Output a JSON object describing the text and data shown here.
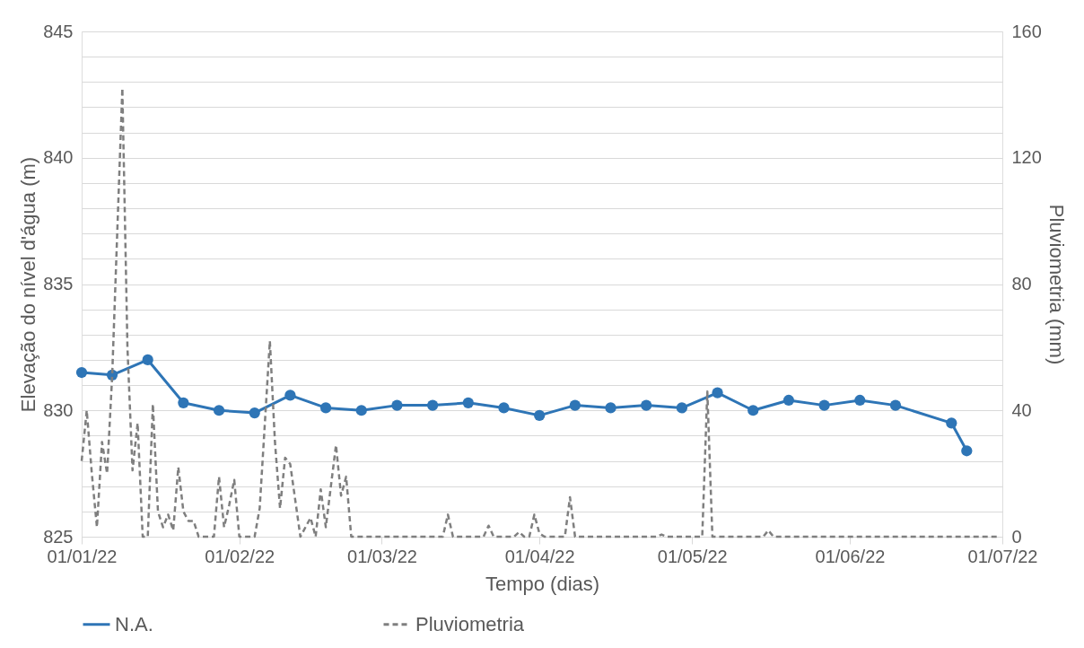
{
  "chart_data": {
    "type": "line",
    "xlabel": "Tempo (dias)",
    "ylabel": "Elevação do nível d'água (m)",
    "y2label": "Pluviometria (mm)",
    "xlim": [
      "2022-01-01",
      "2022-07-01"
    ],
    "xticks": [
      {
        "value": "2022-01-01",
        "label": "01/01/22"
      },
      {
        "value": "2022-02-01",
        "label": "01/02/22"
      },
      {
        "value": "2022-03-01",
        "label": "01/03/22"
      },
      {
        "value": "2022-04-01",
        "label": "01/04/22"
      },
      {
        "value": "2022-05-01",
        "label": "01/05/22"
      },
      {
        "value": "2022-06-01",
        "label": "01/06/22"
      },
      {
        "value": "2022-07-01",
        "label": "01/07/22"
      }
    ],
    "ylim": [
      825,
      845
    ],
    "yticks": [
      825,
      {
        "value": 826,
        "label": null
      },
      {
        "value": 827,
        "label": null
      },
      {
        "value": 828,
        "label": null
      },
      {
        "value": 829,
        "label": null
      },
      830,
      {
        "value": 831,
        "label": null
      },
      {
        "value": 832,
        "label": null
      },
      {
        "value": 833,
        "label": null
      },
      {
        "value": 834,
        "label": null
      },
      835,
      {
        "value": 836,
        "label": null
      },
      {
        "value": 837,
        "label": null
      },
      {
        "value": 838,
        "label": null
      },
      {
        "value": 839,
        "label": null
      },
      840,
      {
        "value": 841,
        "label": null
      },
      {
        "value": 842,
        "label": null
      },
      {
        "value": 843,
        "label": null
      },
      {
        "value": 844,
        "label": null
      },
      845
    ],
    "y2lim": [
      0,
      160
    ],
    "y2ticks": [
      0,
      40,
      80,
      120,
      160
    ],
    "grid": "y",
    "legend": "bottom",
    "series": [
      {
        "name": "N.A.",
        "color": "#2e75b6",
        "marker": "circle",
        "line_style": "solid",
        "x": [
          "2022-01-01",
          "2022-01-07",
          "2022-01-14",
          "2022-01-21",
          "2022-01-28",
          "2022-02-04",
          "2022-02-11",
          "2022-02-18",
          "2022-02-25",
          "2022-03-04",
          "2022-03-11",
          "2022-03-18",
          "2022-03-25",
          "2022-04-01",
          "2022-04-08",
          "2022-04-15",
          "2022-04-22",
          "2022-04-29",
          "2022-05-06",
          "2022-05-13",
          "2022-05-20",
          "2022-05-27",
          "2022-06-03",
          "2022-06-10",
          "2022-06-21",
          "2022-06-24"
        ],
        "values": [
          831.5,
          831.4,
          832.0,
          830.3,
          830.0,
          829.9,
          830.6,
          830.1,
          830.0,
          830.2,
          830.2,
          830.3,
          830.1,
          829.8,
          830.2,
          830.1,
          830.2,
          830.1,
          830.7,
          830.0,
          830.4,
          830.2,
          830.4,
          830.2,
          829.5,
          828.4
        ]
      },
      {
        "name": "Pluviometria",
        "axis": "y2",
        "color": "#7f7f7f",
        "marker": "none",
        "line_style": "dashed",
        "x": [
          "2022-01-01",
          "2022-01-02",
          "2022-01-03",
          "2022-01-04",
          "2022-01-05",
          "2022-01-06",
          "2022-01-07",
          "2022-01-09",
          "2022-01-10",
          "2022-01-11",
          "2022-01-12",
          "2022-01-13",
          "2022-01-14",
          "2022-01-15",
          "2022-01-16",
          "2022-01-17",
          "2022-01-18",
          "2022-01-19",
          "2022-01-20",
          "2022-01-21",
          "2022-01-22",
          "2022-01-23",
          "2022-01-24",
          "2022-01-27",
          "2022-01-28",
          "2022-01-29",
          "2022-01-30",
          "2022-01-31",
          "2022-02-01",
          "2022-02-04",
          "2022-02-05",
          "2022-02-07",
          "2022-02-08",
          "2022-02-09",
          "2022-02-10",
          "2022-02-11",
          "2022-02-13",
          "2022-02-15",
          "2022-02-16",
          "2022-02-17",
          "2022-02-18",
          "2022-02-20",
          "2022-02-21",
          "2022-02-22",
          "2022-02-23",
          "2022-03-13",
          "2022-03-14",
          "2022-03-15",
          "2022-03-21",
          "2022-03-22",
          "2022-03-23",
          "2022-03-27",
          "2022-03-28",
          "2022-03-29",
          "2022-03-30",
          "2022-03-31",
          "2022-04-01",
          "2022-04-02",
          "2022-04-06",
          "2022-04-07",
          "2022-04-08",
          "2022-04-24",
          "2022-04-25",
          "2022-04-26",
          "2022-05-03",
          "2022-05-04",
          "2022-05-05",
          "2022-05-15",
          "2022-05-16",
          "2022-05-17",
          "2022-06-30"
        ],
        "values": [
          24,
          40,
          20,
          3,
          30,
          20,
          51,
          142,
          60,
          21,
          36,
          0,
          0,
          42,
          8,
          3,
          7,
          2,
          22,
          8,
          5,
          5,
          0,
          0,
          19,
          3,
          10,
          18,
          0,
          0,
          9,
          62,
          30,
          9,
          25,
          23,
          0,
          6,
          0,
          15,
          3,
          29,
          13,
          19,
          0,
          0,
          7,
          0,
          0,
          3.5,
          0,
          0,
          1.5,
          0,
          0,
          7,
          1,
          0,
          0,
          12.5,
          0,
          0,
          0.7,
          0,
          0,
          46,
          0,
          0,
          2,
          0,
          0
        ]
      }
    ]
  }
}
